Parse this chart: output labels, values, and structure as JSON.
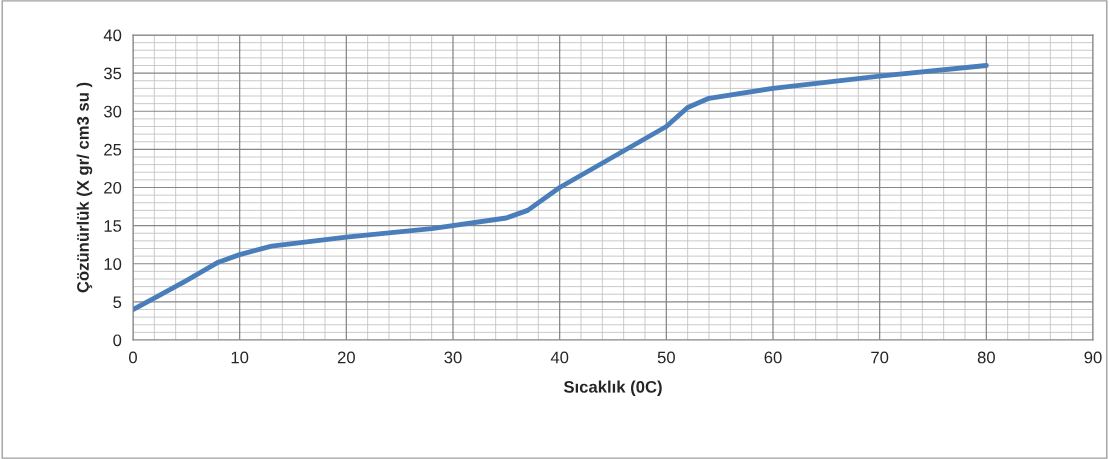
{
  "chart_data": {
    "type": "line",
    "xlabel": "Sıcaklık (0C)",
    "ylabel": "Çözünürlük (X gr/ cm3 su )",
    "x": [
      0,
      2,
      5,
      8,
      10,
      13,
      20,
      28,
      35,
      37,
      40,
      45,
      50,
      52,
      54,
      60,
      70,
      80
    ],
    "series": [
      {
        "color": "#4a7ebb",
        "values": [
          4,
          5.5,
          7.8,
          10.2,
          11.2,
          12.3,
          13.5,
          14.6,
          16,
          17,
          20,
          24,
          28,
          30.5,
          31.7,
          33,
          34.6,
          36
        ]
      }
    ],
    "xlim": [
      0,
      90
    ],
    "xticks": [
      0,
      10,
      20,
      30,
      40,
      50,
      60,
      70,
      80,
      90
    ],
    "ylim": [
      0,
      40
    ],
    "yticks": [
      0,
      5,
      10,
      15,
      20,
      25,
      30,
      35,
      40
    ],
    "grid": true,
    "legend": false,
    "marker": "none",
    "line_style": "solid"
  }
}
